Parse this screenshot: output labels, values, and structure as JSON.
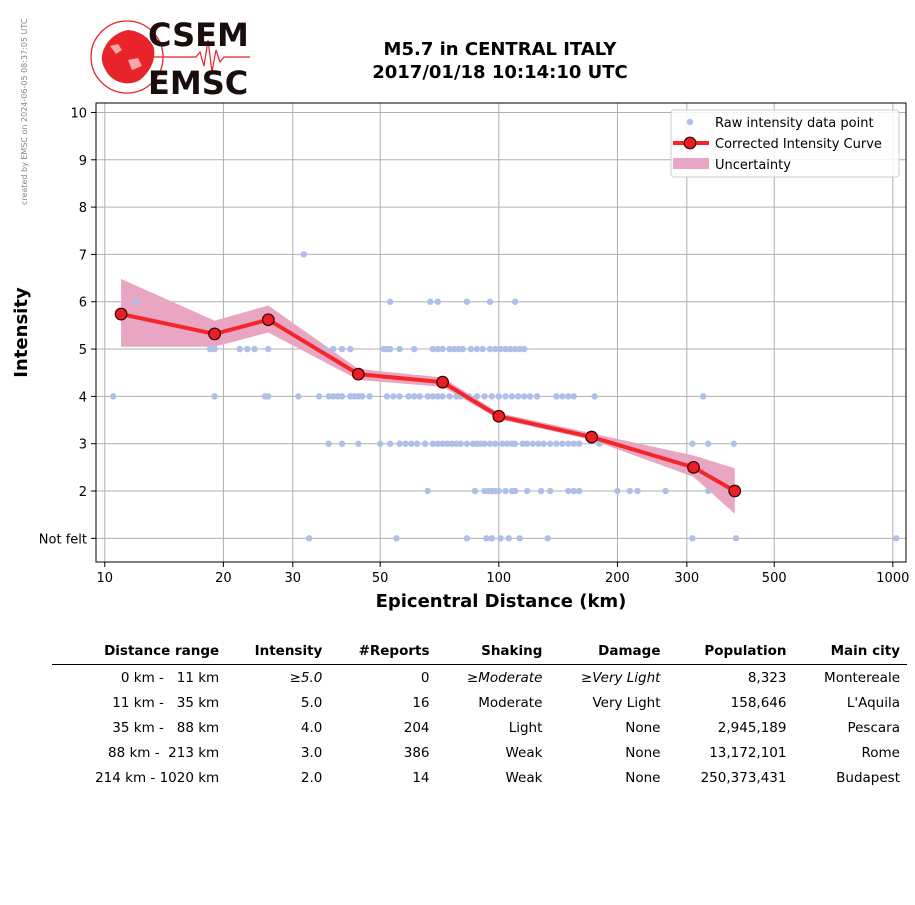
{
  "stamp": "created by EMSC on 2024-06-05 08:37:05 UTC",
  "logo": {
    "line1": "CSEM",
    "line2": "EMSC"
  },
  "title": {
    "line1": "M5.7 in CENTRAL ITALY",
    "line2": "2017/01/18 10:14:10 UTC"
  },
  "colors": {
    "raw": "#aebfea",
    "curve": "#f5252a",
    "marker": "#e81f25",
    "uncertainty": "#e8a6c3",
    "grid": "#b0b0b0"
  },
  "chart_data": {
    "type": "scatter",
    "xlabel": "Epicentral Distance (km)",
    "ylabel": "Intensity",
    "x_scale": "log",
    "xlim": [
      9.5,
      1080
    ],
    "ylim": [
      0.5,
      10.2
    ],
    "x_ticks": [
      10,
      20,
      30,
      50,
      100,
      200,
      300,
      500,
      1000
    ],
    "x_tick_labels": [
      "10",
      "20",
      "30",
      "50",
      "100",
      "200",
      "300",
      "500",
      "1000"
    ],
    "y_ticks": [
      1,
      2,
      3,
      4,
      5,
      6,
      7,
      8,
      9,
      10
    ],
    "y_tick_labels": [
      "Not felt",
      "2",
      "3",
      "4",
      "5",
      "6",
      "7",
      "8",
      "9",
      "10"
    ],
    "grid": true,
    "legend_position": "top-right",
    "legend": [
      "Raw intensity data point",
      "Corrected Intensity Curve",
      "Uncertainty"
    ],
    "raw_points": {
      "1": [
        33,
        55,
        83,
        93,
        96,
        101,
        106,
        113,
        133,
        310,
        400,
        1020
      ],
      "2": [
        66,
        87,
        92,
        94,
        96,
        98,
        100,
        104,
        108,
        110,
        118,
        128,
        135,
        150,
        155,
        160,
        200,
        215,
        225,
        265,
        340
      ],
      "3": [
        37,
        40,
        44,
        50,
        53,
        56,
        58,
        60,
        62,
        65,
        68,
        70,
        72,
        74,
        76,
        78,
        80,
        83,
        86,
        88,
        90,
        92,
        95,
        98,
        102,
        105,
        108,
        110,
        115,
        118,
        122,
        126,
        130,
        135,
        140,
        145,
        150,
        155,
        160,
        180,
        310,
        340,
        395
      ],
      "4": [
        10.5,
        19,
        25.5,
        26,
        31,
        35,
        37,
        38,
        39,
        40,
        42,
        43,
        44,
        45,
        47,
        52,
        54,
        56,
        59,
        61,
        63,
        66,
        68,
        70,
        72,
        75,
        78,
        80,
        84,
        88,
        92,
        96,
        100,
        104,
        108,
        112,
        116,
        120,
        125,
        140,
        145,
        150,
        155,
        175,
        330
      ],
      "5": [
        18.5,
        19,
        22,
        23,
        24,
        26,
        36,
        38,
        40,
        42,
        51,
        52,
        53,
        56,
        61,
        68,
        70,
        72,
        75,
        77,
        79,
        81,
        85,
        88,
        91,
        95,
        98,
        101,
        104,
        107,
        110,
        113,
        116
      ],
      "6": [
        12,
        53,
        67,
        70,
        83,
        95,
        110
      ],
      "7": [
        32
      ]
    },
    "series": [
      {
        "name": "Corrected Intensity Curve",
        "x": [
          11,
          19,
          26,
          44,
          72,
          100,
          172,
          312,
          397
        ],
        "y": [
          5.74,
          5.32,
          5.62,
          4.47,
          4.3,
          3.58,
          3.14,
          2.5,
          2.0
        ]
      }
    ],
    "uncertainty": {
      "x": [
        11,
        19,
        26,
        44,
        72,
        100,
        172,
        312,
        397
      ],
      "lower": [
        5.05,
        5.05,
        5.35,
        4.35,
        4.2,
        3.52,
        3.08,
        2.3,
        1.52
      ],
      "upper": [
        6.48,
        5.6,
        5.92,
        4.58,
        4.4,
        3.65,
        3.22,
        2.75,
        2.48
      ]
    }
  },
  "table": {
    "headers": [
      "Distance range",
      "Intensity",
      "#Reports",
      "Shaking",
      "Damage",
      "Population",
      "Main city"
    ],
    "rows": [
      [
        "0 km -   11 km",
        "≥5.0",
        "0",
        "≥Moderate",
        "≥Very Light",
        "8,323",
        "Montereale"
      ],
      [
        "11 km -   35 km",
        "5.0",
        "16",
        "Moderate",
        "Very Light",
        "158,646",
        "L'Aquila"
      ],
      [
        "35 km -   88 km",
        "4.0",
        "204",
        "Light",
        "None",
        "2,945,189",
        "Pescara"
      ],
      [
        "88 km -  213 km",
        "3.0",
        "386",
        "Weak",
        "None",
        "13,172,101",
        "Rome"
      ],
      [
        "214 km - 1020 km",
        "2.0",
        "14",
        "Weak",
        "None",
        "250,373,431",
        "Budapest"
      ]
    ]
  }
}
